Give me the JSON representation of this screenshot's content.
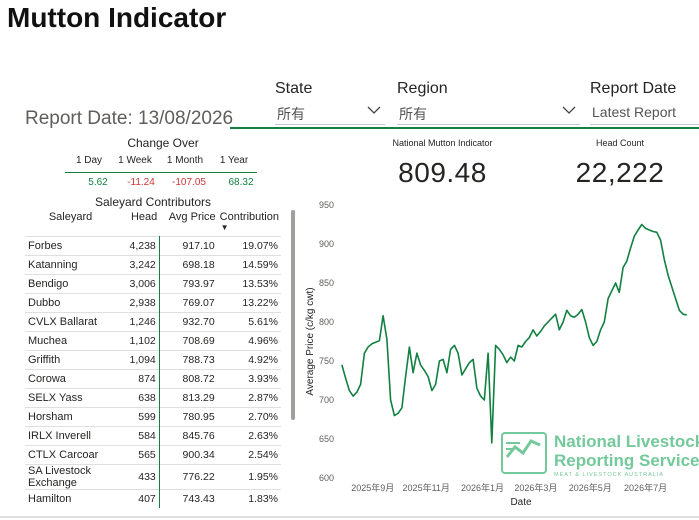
{
  "title": "Mutton Indicator",
  "filters": {
    "state": {
      "label": "State",
      "value": "所有"
    },
    "region": {
      "label": "Region",
      "value": "所有"
    },
    "report_date": {
      "label": "Report Date",
      "value": "Latest Report"
    }
  },
  "report_date_text": "Report Date: 13/08/2026",
  "cards": {
    "indicator": {
      "label": "National Mutton Indicator",
      "value": "809.48"
    },
    "head_count": {
      "label": "Head Count",
      "value": "22,222"
    }
  },
  "change_over": {
    "title": "Change Over",
    "periods": [
      "1 Day",
      "1 Week",
      "1 Month",
      "1 Year"
    ],
    "values": [
      "5.62",
      "-11.24",
      "-107.05",
      "68.32"
    ],
    "colors": {
      "positive": "#118040",
      "negative": "#d13438"
    }
  },
  "saleyard": {
    "title": "Saleyard Contributors",
    "columns": [
      "Saleyard",
      "Head",
      "Avg Price",
      "Contribution"
    ],
    "sort_indicator": "▼",
    "rows": [
      {
        "name": "Forbes",
        "head": "4,238",
        "avg": "917.10",
        "contrib": "19.07%"
      },
      {
        "name": "Katanning",
        "head": "3,242",
        "avg": "698.18",
        "contrib": "14.59%"
      },
      {
        "name": "Bendigo",
        "head": "3,006",
        "avg": "793.97",
        "contrib": "13.53%"
      },
      {
        "name": "Dubbo",
        "head": "2,938",
        "avg": "769.07",
        "contrib": "13.22%"
      },
      {
        "name": "CVLX Ballarat",
        "head": "1,246",
        "avg": "932.70",
        "contrib": "5.61%"
      },
      {
        "name": "Muchea",
        "head": "1,102",
        "avg": "708.69",
        "contrib": "4.96%"
      },
      {
        "name": "Griffith",
        "head": "1,094",
        "avg": "788.73",
        "contrib": "4.92%"
      },
      {
        "name": "Corowa",
        "head": "874",
        "avg": "808.72",
        "contrib": "3.93%"
      },
      {
        "name": "SELX Yass",
        "head": "638",
        "avg": "813.29",
        "contrib": "2.87%"
      },
      {
        "name": "Horsham",
        "head": "599",
        "avg": "780.95",
        "contrib": "2.70%"
      },
      {
        "name": "IRLX Inverell",
        "head": "584",
        "avg": "845.76",
        "contrib": "2.63%"
      },
      {
        "name": "CTLX Carcoar",
        "head": "565",
        "avg": "900.34",
        "contrib": "2.54%"
      },
      {
        "name": "SA Livestock Exchange",
        "head": "433",
        "avg": "776.22",
        "contrib": "1.95%"
      },
      {
        "name": "Hamilton",
        "head": "407",
        "avg": "743.43",
        "contrib": "1.83%"
      }
    ]
  },
  "watermark": {
    "line1": "National Livestock",
    "line2": "Reporting Service",
    "line3": "MEAT & LIVESTOCK AUSTRALIA",
    "color": "#5cc08a"
  },
  "chart_data": {
    "type": "line",
    "xlabel": "Date",
    "ylabel": "Average Price (c/kg cwt)",
    "ylim": [
      600,
      950
    ],
    "yticks": [
      600,
      650,
      700,
      750,
      800,
      850,
      900,
      950
    ],
    "xticks": [
      "2025年9月",
      "2025年11月",
      "2026年1月",
      "2026年3月",
      "2026年5月",
      "2026年7月"
    ],
    "grid": false,
    "series_color": "#118040",
    "series": [
      {
        "x": [
          "2025-08-10",
          "2025-08-14",
          "2025-08-18",
          "2025-08-22",
          "2025-08-26",
          "2025-08-30",
          "2025-09-03",
          "2025-09-07",
          "2025-09-11",
          "2025-09-15",
          "2025-09-19",
          "2025-09-23",
          "2025-09-27",
          "2025-10-01",
          "2025-10-05",
          "2025-10-09",
          "2025-10-13",
          "2025-10-17",
          "2025-10-21",
          "2025-10-25",
          "2025-10-29",
          "2025-11-02",
          "2025-11-06",
          "2025-11-10",
          "2025-11-14",
          "2025-11-18",
          "2025-11-22",
          "2025-11-26",
          "2025-11-30",
          "2025-12-04",
          "2025-12-08",
          "2025-12-12",
          "2025-12-16",
          "2025-12-20",
          "2025-12-24",
          "2025-12-28",
          "2026-01-01",
          "2026-01-05",
          "2026-01-09",
          "2026-01-13",
          "2026-01-17",
          "2026-01-21",
          "2026-01-25",
          "2026-01-29",
          "2026-02-02",
          "2026-02-06",
          "2026-02-10",
          "2026-02-14",
          "2026-02-18",
          "2026-02-22",
          "2026-02-26",
          "2026-03-02",
          "2026-03-06",
          "2026-03-10",
          "2026-03-14",
          "2026-03-18",
          "2026-03-22",
          "2026-03-26",
          "2026-03-30",
          "2026-04-03",
          "2026-04-07",
          "2026-04-11",
          "2026-04-15",
          "2026-04-19",
          "2026-04-23",
          "2026-04-27",
          "2026-05-01",
          "2026-05-05",
          "2026-05-09",
          "2026-05-13",
          "2026-05-17",
          "2026-05-21",
          "2026-05-25",
          "2026-05-29",
          "2026-06-02",
          "2026-06-06",
          "2026-06-10",
          "2026-06-14",
          "2026-06-18",
          "2026-06-22",
          "2026-06-26",
          "2026-06-30",
          "2026-07-04",
          "2026-07-08",
          "2026-07-12",
          "2026-07-16",
          "2026-07-20",
          "2026-07-24",
          "2026-07-28",
          "2026-08-01",
          "2026-08-05",
          "2026-08-09",
          "2026-08-13"
        ],
        "y": [
          745,
          728,
          712,
          705,
          710,
          720,
          760,
          768,
          772,
          774,
          776,
          808,
          778,
          700,
          680,
          683,
          690,
          730,
          768,
          735,
          760,
          745,
          738,
          730,
          712,
          720,
          750,
          752,
          735,
          765,
          770,
          760,
          732,
          740,
          748,
          752,
          715,
          705,
          700,
          760,
          645,
          770,
          765,
          758,
          748,
          755,
          750,
          770,
          768,
          775,
          780,
          790,
          782,
          788,
          795,
          800,
          805,
          810,
          790,
          800,
          815,
          808,
          806,
          810,
          816,
          800,
          780,
          770,
          775,
          790,
          800,
          830,
          840,
          850,
          838,
          870,
          878,
          895,
          910,
          918,
          925,
          920,
          918,
          916,
          915,
          905,
          880,
          860,
          845,
          830,
          815,
          810,
          809
        ]
      }
    ]
  }
}
